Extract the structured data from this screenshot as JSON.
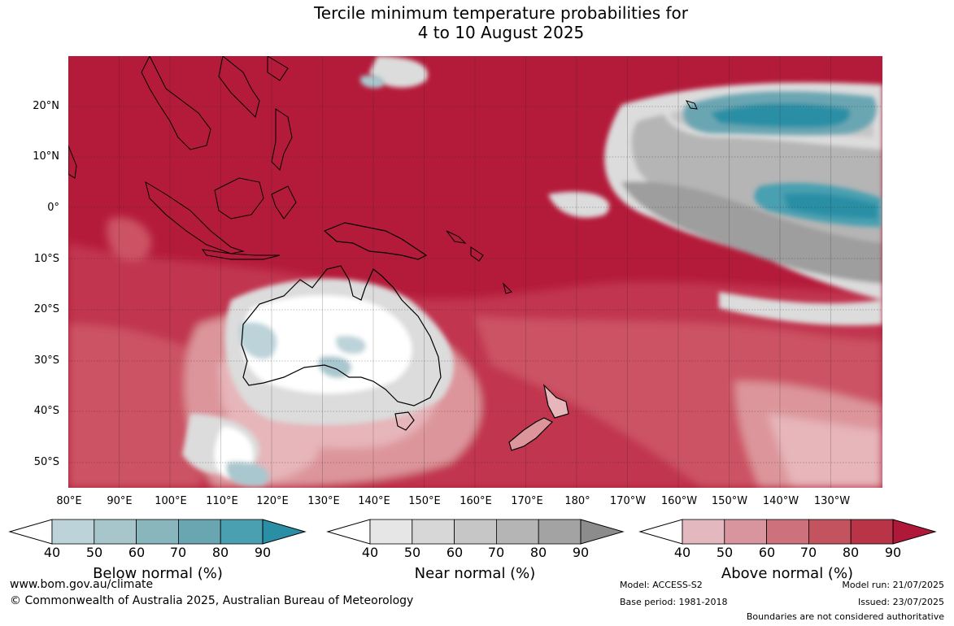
{
  "title": {
    "line1": "Tercile minimum temperature probabilities for",
    "line2": "4 to 10 August 2025"
  },
  "map": {
    "lat_labels": [
      "20°N",
      "10°N",
      "0°",
      "10°S",
      "20°S",
      "30°S",
      "40°S",
      "50°S"
    ],
    "lon_labels": [
      "80°E",
      "90°E",
      "100°E",
      "110°E",
      "120°E",
      "130°E",
      "140°E",
      "150°E",
      "160°E",
      "170°E",
      "180°",
      "170°W",
      "160°W",
      "150°W",
      "140°W",
      "130°W"
    ],
    "colors": {
      "above_90": "#b41b3a",
      "above_80": "#c1364f",
      "above_70": "#cc5363",
      "above_60": "#d37880",
      "above_50": "#dc959b",
      "above_40": "#e6b6ba",
      "near": "#dcdcdc",
      "near_dark": "#9e9e9e",
      "below": "#a9c7ce",
      "below_dark": "#2a8fa5",
      "white": "#ffffff"
    }
  },
  "colorbars": [
    {
      "name": "Below normal (%)",
      "ticks": [
        "40",
        "50",
        "60",
        "70",
        "80",
        "90"
      ],
      "colors": [
        "#bcd3d9",
        "#a6c6cb",
        "#89b6bd",
        "#6aa6b2",
        "#4aa0b1",
        "#2a8fa5"
      ]
    },
    {
      "name": "Near normal (%)",
      "ticks": [
        "40",
        "50",
        "60",
        "70",
        "80",
        "90"
      ],
      "colors": [
        "#e6e6e6",
        "#d7d7d7",
        "#c6c6c6",
        "#b5b5b5",
        "#a3a3a3",
        "#8c8c8c"
      ]
    },
    {
      "name": "Above normal (%)",
      "ticks": [
        "40",
        "50",
        "60",
        "70",
        "80",
        "90"
      ],
      "colors": [
        "#e3b8bf",
        "#d8959e",
        "#cd727d",
        "#c3545f",
        "#b93447",
        "#b0183a"
      ]
    }
  ],
  "footer": {
    "website": "www.bom.gov.au/climate",
    "copyright": "© Commonwealth of Australia 2025, Australian Bureau of Meteorology",
    "model": "Model: ACCESS-S2",
    "base_period": "Base period: 1981-2018",
    "model_run": "Model run: 21/07/2025",
    "issued": "Issued: 23/07/2025",
    "disclaimer": "Boundaries are not considered authoritative"
  }
}
